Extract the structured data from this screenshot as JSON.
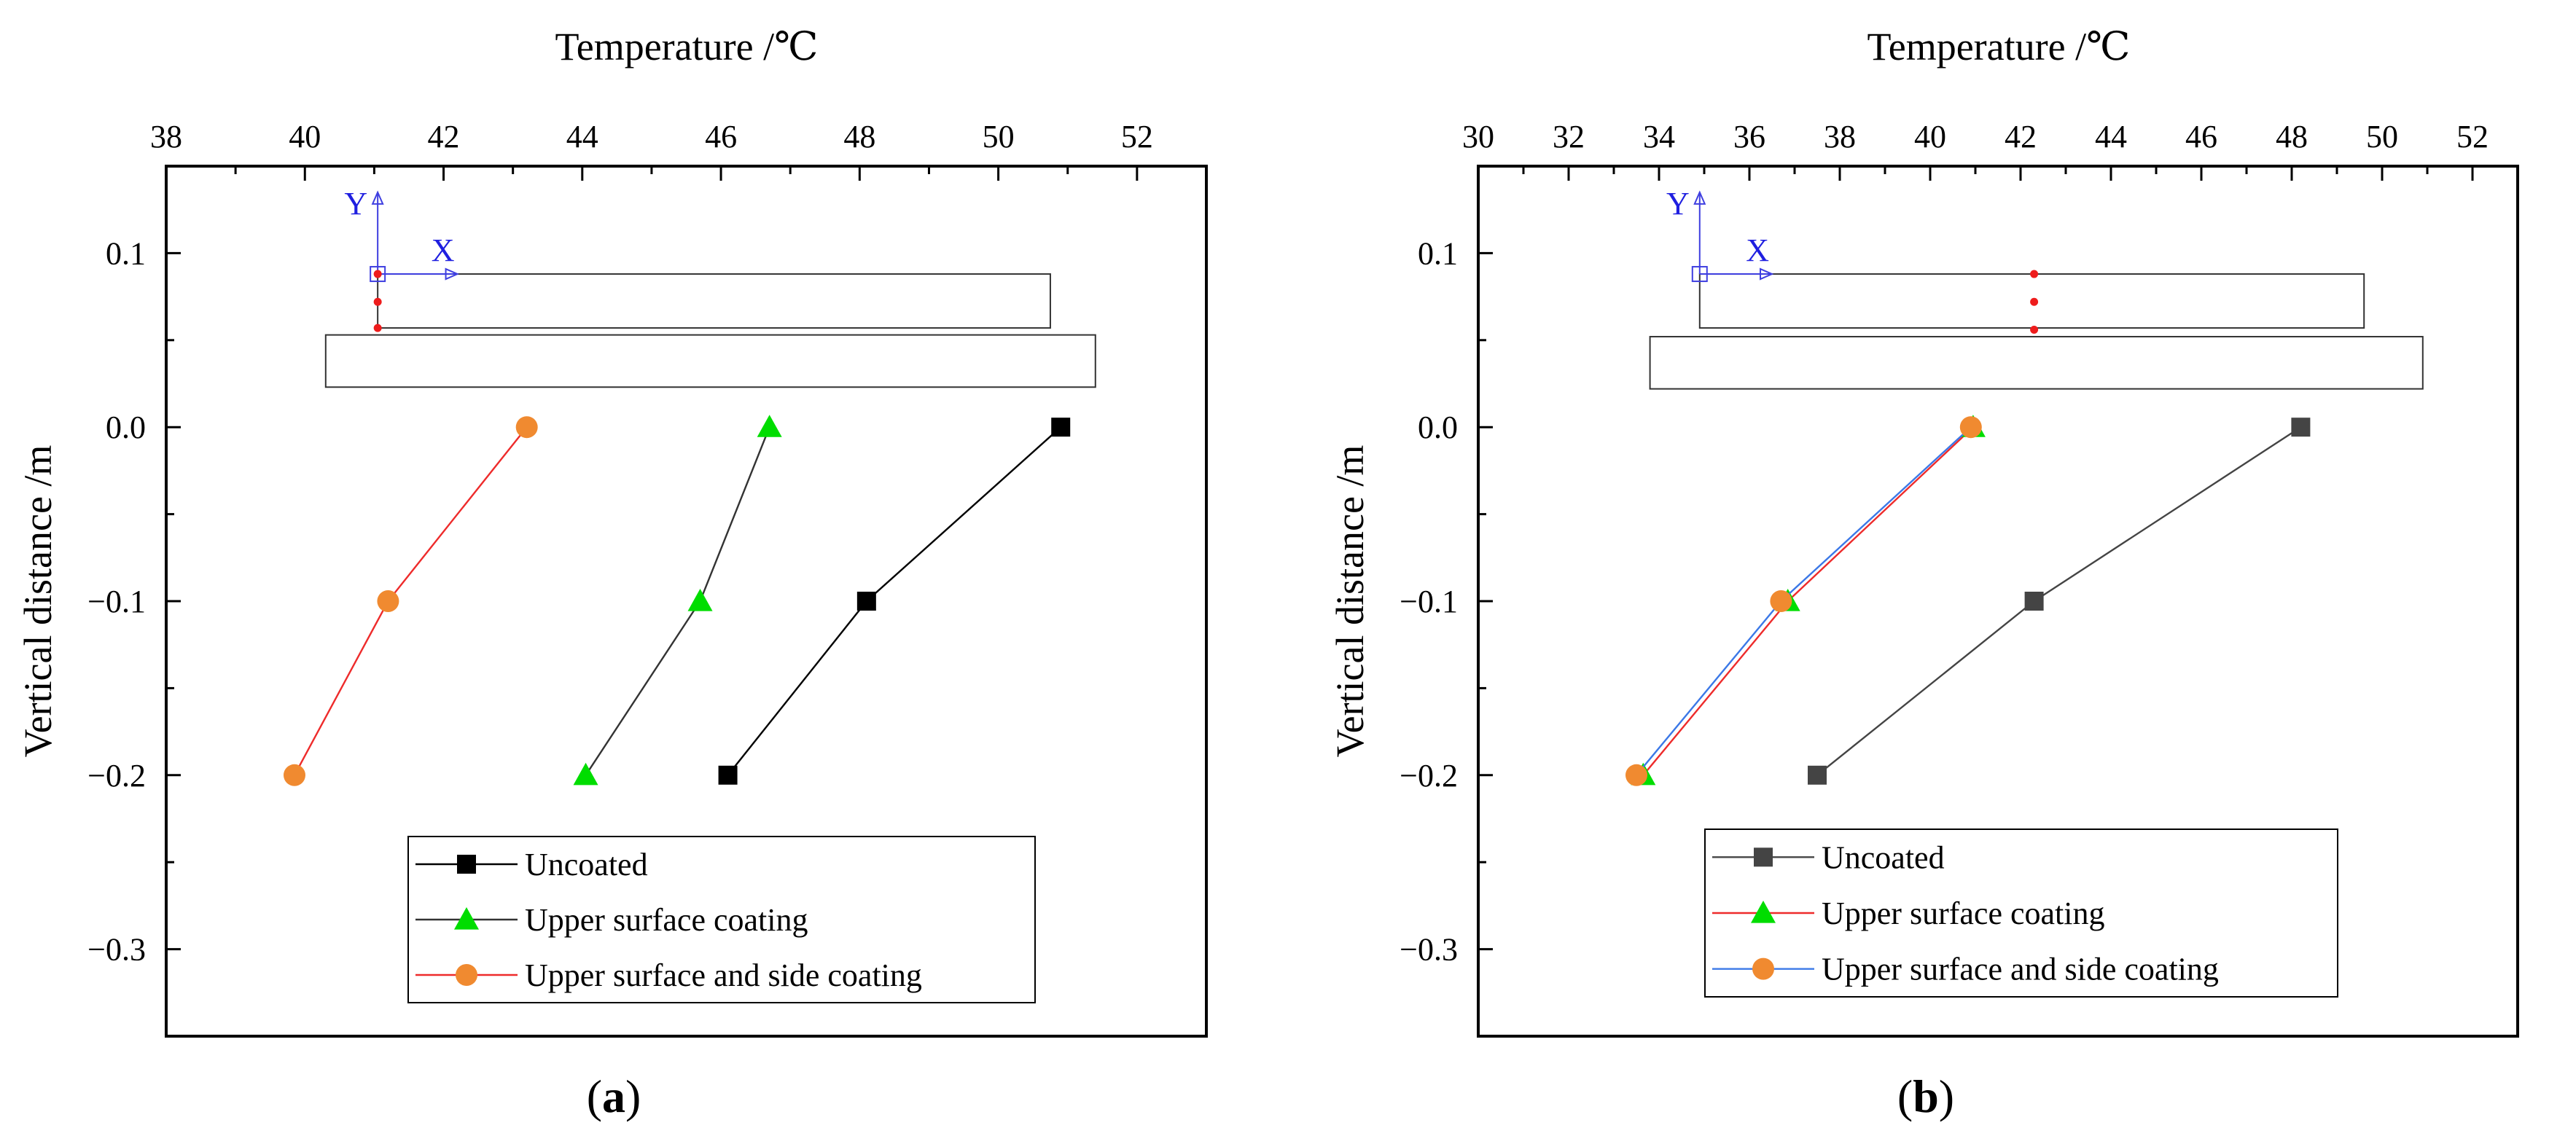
{
  "chart_data": [
    {
      "type": "line",
      "panel_label": "(a)",
      "xlabel": "Temperature /℃",
      "ylabel": "Vertical distance /m",
      "xlim": [
        38,
        53
      ],
      "ylim": [
        -0.35,
        0.15
      ],
      "xticks": [
        38,
        40,
        42,
        44,
        46,
        48,
        50,
        52
      ],
      "xtick_labels": [
        "38",
        "40",
        "42",
        "44",
        "46",
        "48",
        "50",
        "52"
      ],
      "yticks": [
        0.1,
        0.0,
        -0.1,
        -0.2,
        -0.3
      ],
      "ytick_labels": [
        "0.1",
        "0.0",
        "−0.1",
        "−0.2",
        "−0.3"
      ],
      "x_axis_position": "top",
      "legend_position": "bottom-center",
      "inset": {
        "x_label": "X",
        "y_label": "Y",
        "origin": [
          41.05,
          0.088
        ],
        "x_arrow_end": 42.2,
        "y_arrow_end": 0.135,
        "slab_top": [
          41.05,
          50.75,
          0.057,
          0.088
        ],
        "slab_bottom": [
          40.3,
          51.4,
          0.023,
          0.053
        ],
        "sensor_points": [
          [
            41.05,
            0.088
          ],
          [
            41.05,
            0.072
          ],
          [
            41.05,
            0.057
          ]
        ]
      },
      "series": [
        {
          "name": "Uncoated",
          "marker": "square",
          "color": "#000000",
          "line_color": "#000000",
          "x": [
            50.9,
            48.1,
            46.1
          ],
          "y": [
            0.0,
            -0.1,
            -0.2
          ]
        },
        {
          "name": "Upper surface coating",
          "marker": "triangle",
          "color": "#00dd00",
          "line_color": "#333333",
          "x": [
            46.7,
            45.7,
            44.05
          ],
          "y": [
            0.0,
            -0.1,
            -0.2
          ]
        },
        {
          "name": "Upper surface and side coating",
          "marker": "circle",
          "color": "#f08a30",
          "line_color": "#ee2b2b",
          "x": [
            43.2,
            41.2,
            39.85
          ],
          "y": [
            0.0,
            -0.1,
            -0.2
          ]
        }
      ]
    },
    {
      "type": "line",
      "panel_label": "(b)",
      "xlabel": "Temperature /℃",
      "ylabel": "Vertical distance /m",
      "xlim": [
        30,
        53
      ],
      "ylim": [
        -0.35,
        0.15
      ],
      "xticks": [
        30,
        32,
        34,
        36,
        38,
        40,
        42,
        44,
        46,
        48,
        50,
        52
      ],
      "xtick_labels": [
        "30",
        "32",
        "34",
        "36",
        "38",
        "40",
        "42",
        "44",
        "46",
        "48",
        "50",
        "52"
      ],
      "yticks": [
        0.1,
        0.0,
        -0.1,
        -0.2,
        -0.3
      ],
      "ytick_labels": [
        "0.1",
        "0.0",
        "−0.1",
        "−0.2",
        "−0.3"
      ],
      "x_axis_position": "top",
      "legend_position": "bottom-center",
      "inset": {
        "x_label": "X",
        "y_label": "Y",
        "origin": [
          34.9,
          0.088
        ],
        "x_arrow_end": 36.5,
        "y_arrow_end": 0.135,
        "slab_top": [
          34.9,
          49.6,
          0.057,
          0.088
        ],
        "slab_bottom": [
          33.8,
          50.9,
          0.022,
          0.052
        ],
        "sensor_points": [
          [
            42.3,
            0.088
          ],
          [
            42.3,
            0.072
          ],
          [
            42.3,
            0.056
          ]
        ]
      },
      "series": [
        {
          "name": "Uncoated",
          "marker": "square",
          "color": "#444444",
          "line_color": "#444444",
          "x": [
            48.2,
            42.3,
            37.5
          ],
          "y": [
            0.0,
            -0.1,
            -0.2
          ]
        },
        {
          "name": "Upper surface coating",
          "marker": "triangle",
          "color": "#00dd00",
          "line_color": "#ee2b2b",
          "x": [
            40.95,
            36.85,
            33.65
          ],
          "y": [
            0.0,
            -0.1,
            -0.2
          ]
        },
        {
          "name": "Upper surface and side coating",
          "marker": "circle",
          "color": "#f08a30",
          "line_color": "#3b78e7",
          "x": [
            40.9,
            36.7,
            33.5
          ],
          "y": [
            0.0,
            -0.1,
            -0.2
          ]
        }
      ]
    }
  ]
}
